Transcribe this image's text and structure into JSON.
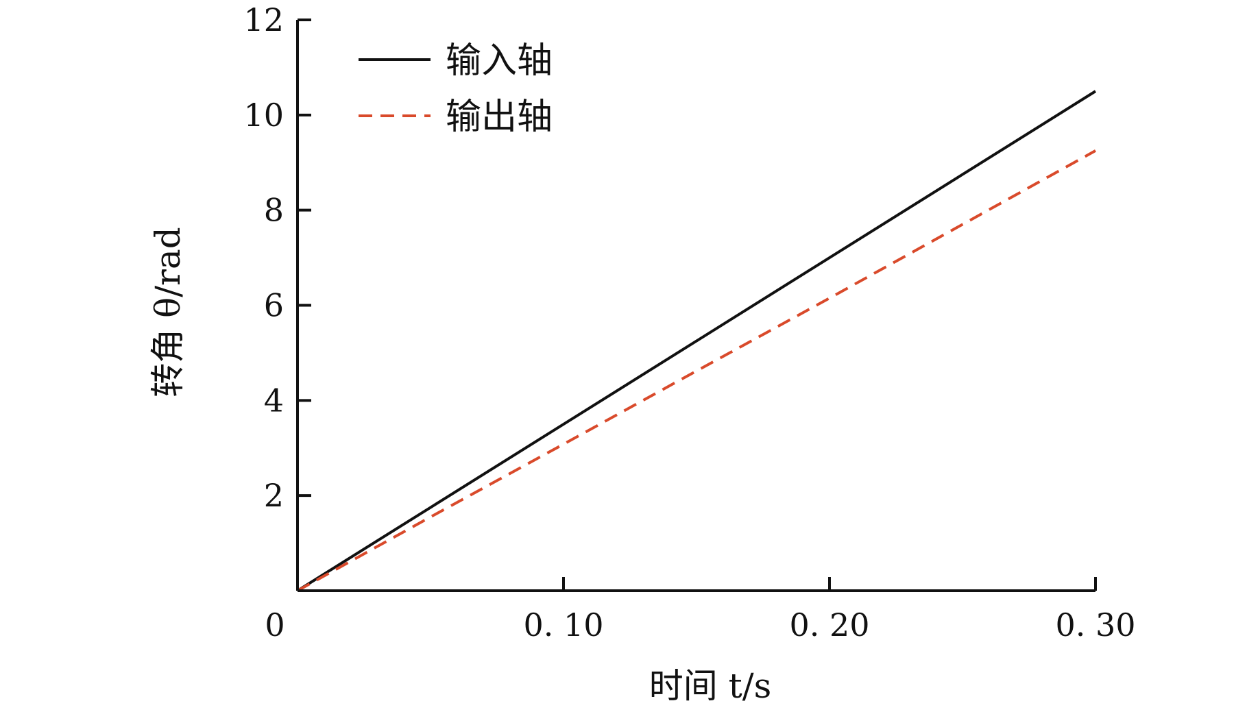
{
  "chart_data": {
    "type": "line",
    "title": "",
    "xlabel": "时间 t/s",
    "ylabel": "转角 θ/rad",
    "xlim": [
      0,
      0.3
    ],
    "ylim": [
      0,
      12
    ],
    "x_ticks": [
      {
        "value": 0,
        "label": "0"
      },
      {
        "value": 0.1,
        "label": "0. 10"
      },
      {
        "value": 0.2,
        "label": "0. 20"
      },
      {
        "value": 0.3,
        "label": "0. 30"
      }
    ],
    "y_ticks": [
      {
        "value": 2,
        "label": "2"
      },
      {
        "value": 4,
        "label": "4"
      },
      {
        "value": 6,
        "label": "6"
      },
      {
        "value": 8,
        "label": "8"
      },
      {
        "value": 10,
        "label": "10"
      },
      {
        "value": 12,
        "label": "12"
      }
    ],
    "grid": false,
    "legend_position": "top-left",
    "series": [
      {
        "name": "输入轴",
        "color": "#111111",
        "dash": "solid",
        "x": [
          0,
          0.05,
          0.1,
          0.15,
          0.2,
          0.25,
          0.3
        ],
        "y": [
          0,
          1.75,
          3.5,
          5.25,
          7.0,
          8.75,
          10.5
        ]
      },
      {
        "name": "输出轴",
        "color": "#d94a2b",
        "dash": "dashed",
        "x": [
          0,
          0.05,
          0.1,
          0.15,
          0.2,
          0.25,
          0.3
        ],
        "y": [
          0,
          1.55,
          3.08,
          4.62,
          6.15,
          7.7,
          9.25
        ]
      }
    ]
  }
}
